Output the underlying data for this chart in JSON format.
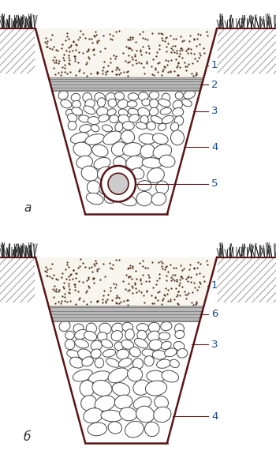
{
  "bg_color": "#ffffff",
  "outline_color": "#5a1515",
  "label_color": "#1a4a8a",
  "text_color": "#333333",
  "sand_dot_color": "#4a2a1a",
  "geotextile_fill": "#b8b8b8",
  "geotextile_line": "#666666",
  "gravel_outline": "#444444",
  "grass_color": "#222222",
  "pipe_color": "#5a1515",
  "diagram_a_label": "а",
  "diagram_b_label": "б",
  "figsize": [
    3.5,
    5.85
  ],
  "dpi": 100
}
